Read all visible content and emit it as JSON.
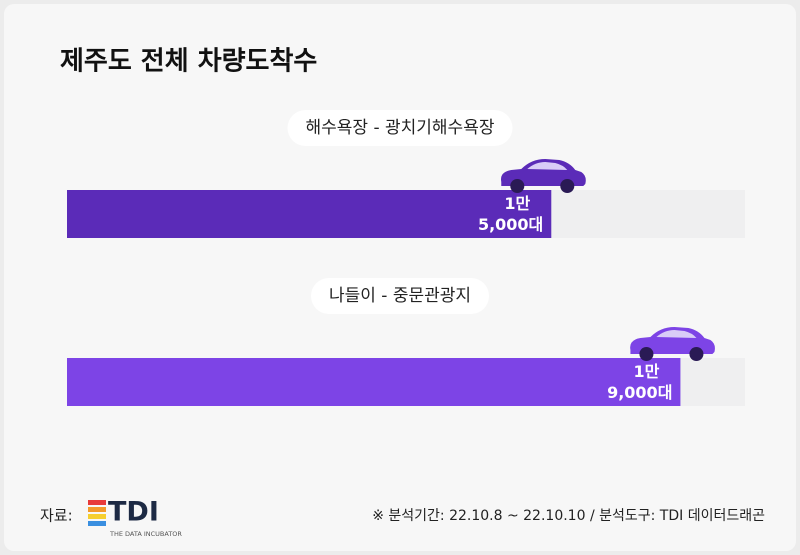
{
  "chart_data": {
    "type": "bar",
    "orientation": "horizontal",
    "title": "제주도 전체 차량도착수",
    "categories": [
      "해수욕장 - 광치기해수욕장",
      "나들이 - 중문관광지"
    ],
    "values": [
      15000,
      19000
    ],
    "value_labels": [
      "1만 5,000대",
      "1만 9,000대"
    ],
    "colors": [
      "#5b2bb8",
      "#7d44e6"
    ],
    "track_color": "#efeff0",
    "xlim": [
      0,
      21000
    ],
    "source_label": "자료:",
    "logo": {
      "text": "TDI",
      "subtitle": "THE DATA INCUBATOR"
    },
    "note": "※ 분석기간: 22.10.8 ~ 22.10.10 / 분석도구: TDI 데이터드래곤"
  }
}
